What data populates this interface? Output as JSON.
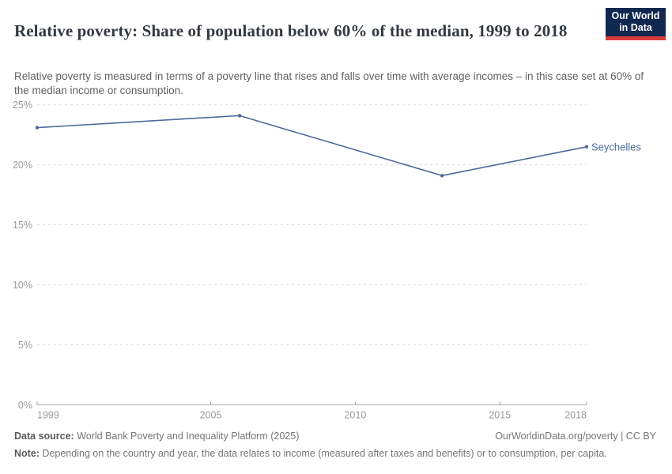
{
  "header": {
    "title": "Relative poverty: Share of population below 60% of the median, 1999 to 2018",
    "subtitle": "Relative poverty is measured in terms of a poverty line that rises and falls over time with average incomes – in this case set at 60% of the median income or consumption.",
    "logo": {
      "line1": "Our World",
      "line2": "in Data",
      "bg_color": "#102850",
      "accent_color": "#D73A3A"
    }
  },
  "chart_data": {
    "type": "line",
    "title": "Relative poverty: Share of population below 60% of the median, 1999 to 2018",
    "series": [
      {
        "name": "Seychelles",
        "x": [
          1999,
          2006,
          2013,
          2018
        ],
        "values": [
          23.1,
          24.1,
          19.1,
          21.5
        ]
      }
    ],
    "xlabel": "",
    "ylabel": "",
    "xlim": [
      1999,
      2018
    ],
    "ylim": [
      0,
      25
    ],
    "xticks": [
      {
        "value": 1999,
        "label": "1999",
        "align": "start"
      },
      {
        "value": 2005,
        "label": "2005",
        "align": "middle"
      },
      {
        "value": 2010,
        "label": "2010",
        "align": "middle"
      },
      {
        "value": 2015,
        "label": "2015",
        "align": "middle"
      },
      {
        "value": 2018,
        "label": "2018",
        "align": "end"
      }
    ],
    "yticks": [
      {
        "value": 0,
        "label": "0%"
      },
      {
        "value": 5,
        "label": "5%"
      },
      {
        "value": 10,
        "label": "10%"
      },
      {
        "value": 15,
        "label": "15%"
      },
      {
        "value": 20,
        "label": "20%"
      },
      {
        "value": 25,
        "label": "25%"
      }
    ],
    "grid": "horizontal dashed",
    "legend_position": "end-of-line label",
    "line_color": "#4C6A9C",
    "gridline_color": "#dcdcdc",
    "axis_color": "#a3a3a3",
    "tick_label_color": "#9a9a9a"
  },
  "footer": {
    "data_source_label": "Data source:",
    "data_source_value": " World Bank Poverty and Inequality Platform (2025)",
    "credit": "OurWorldinData.org/poverty | CC BY",
    "note_label": "Note:",
    "note_value": " Depending on the country and year, the data relates to income (measured after taxes and benefits) or to consumption, per capita."
  }
}
